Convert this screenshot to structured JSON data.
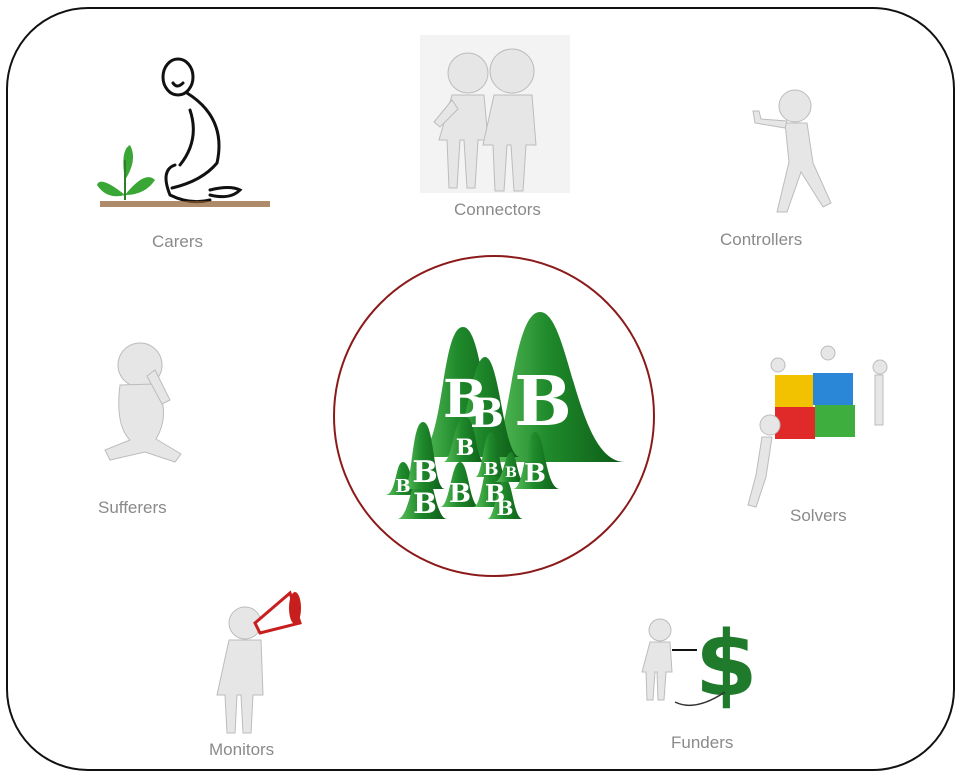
{
  "diagram": {
    "colors": {
      "frame": "#111111",
      "circle": "#8b1a1a",
      "label": "#8a8a8a",
      "brand_green": "#1f8a2b"
    },
    "center": {
      "icon": "green-b-mountains-icon",
      "letter": "B"
    },
    "nodes": {
      "carers": {
        "label": "Carers",
        "icon": "gardener-stick-figure-icon"
      },
      "connectors": {
        "label": "Connectors",
        "icon": "two-figures-icon"
      },
      "controllers": {
        "label": "Controllers",
        "icon": "thumbs-up-figure-icon"
      },
      "sufferers": {
        "label": "Sufferers",
        "icon": "sad-sitting-figure-icon"
      },
      "solvers": {
        "label": "Solvers",
        "icon": "puzzle-team-icon"
      },
      "monitors": {
        "label": "Monitors",
        "icon": "megaphone-figure-icon"
      },
      "funders": {
        "label": "Funders",
        "icon": "dollar-pump-figure-icon"
      }
    }
  }
}
